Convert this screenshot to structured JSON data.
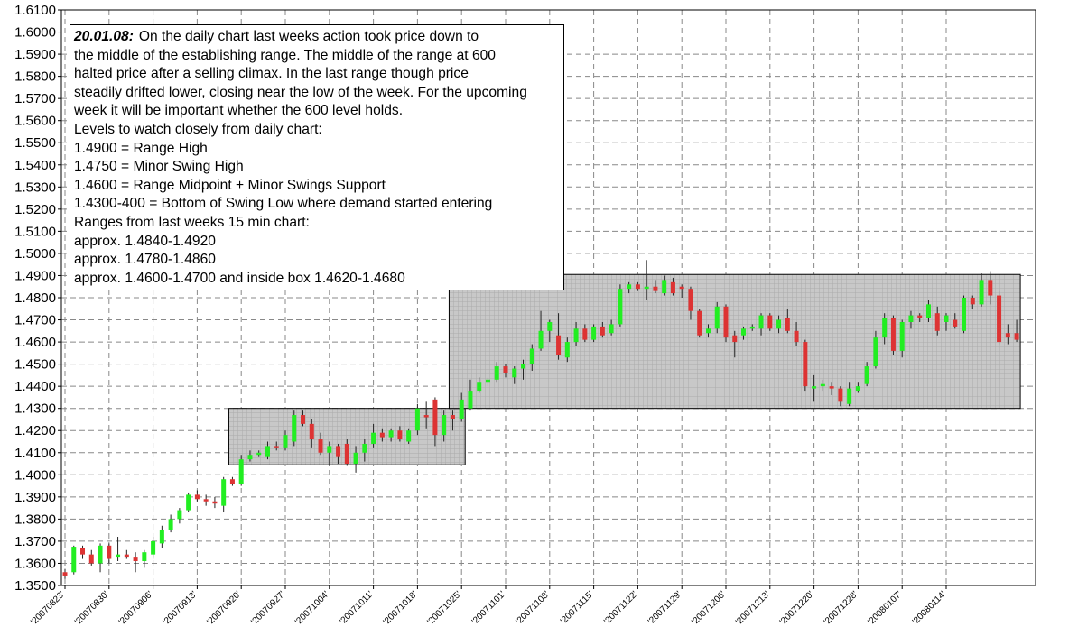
{
  "chart_data": {
    "type": "candlestick",
    "ylim": [
      1.35,
      1.61
    ],
    "y_ticks": [
      "1.3500",
      "1.3600",
      "1.3700",
      "1.3800",
      "1.3900",
      "1.4000",
      "1.4100",
      "1.4200",
      "1.4300",
      "1.4400",
      "1.4500",
      "1.4600",
      "1.4700",
      "1.4800",
      "1.4900",
      "1.5000",
      "1.5100",
      "1.5200",
      "1.5300",
      "1.5400",
      "1.5500",
      "1.5600",
      "1.5700",
      "1.5800",
      "1.5900",
      "1.6000",
      "1.6100"
    ],
    "x_ticks": [
      "'20070823'",
      "'20070830'",
      "'20070906'",
      "'20070913'",
      "'20070920'",
      "'20070927'",
      "'20071004'",
      "'20071011'",
      "'20071018'",
      "'20071025'",
      "'20071101'",
      "'20071108'",
      "'20071115'",
      "'20071122'",
      "'20071129'",
      "'20071206'",
      "'20071213'",
      "'20071220'",
      "'20071228'",
      "'20080107'",
      "'20080114'"
    ],
    "grid": true,
    "bull_color": "#22ee22",
    "bear_color": "#dd3333",
    "range_box_color": "#c8c8c8",
    "candles": [
      [
        1.356,
        1.3575,
        1.353,
        1.3545
      ],
      [
        1.356,
        1.368,
        1.355,
        1.3675
      ],
      [
        1.367,
        1.368,
        1.362,
        1.364
      ],
      [
        1.364,
        1.366,
        1.359,
        1.36
      ],
      [
        1.36,
        1.369,
        1.356,
        1.368
      ],
      [
        1.368,
        1.369,
        1.36,
        1.362
      ],
      [
        1.363,
        1.372,
        1.361,
        1.364
      ],
      [
        1.364,
        1.366,
        1.362,
        1.363
      ],
      [
        1.363,
        1.365,
        1.356,
        1.361
      ],
      [
        1.361,
        1.366,
        1.358,
        1.365
      ],
      [
        1.364,
        1.372,
        1.362,
        1.37
      ],
      [
        1.369,
        1.377,
        1.367,
        1.375
      ],
      [
        1.375,
        1.382,
        1.374,
        1.38
      ],
      [
        1.38,
        1.385,
        1.378,
        1.384
      ],
      [
        1.384,
        1.392,
        1.383,
        1.391
      ],
      [
        1.391,
        1.393,
        1.388,
        1.389
      ],
      [
        1.389,
        1.391,
        1.386,
        1.388
      ],
      [
        1.388,
        1.39,
        1.385,
        1.387
      ],
      [
        1.386,
        1.399,
        1.383,
        1.398
      ],
      [
        1.398,
        1.399,
        1.395,
        1.396
      ],
      [
        1.396,
        1.409,
        1.395,
        1.407
      ],
      [
        1.407,
        1.411,
        1.406,
        1.409
      ],
      [
        1.409,
        1.411,
        1.408,
        1.41
      ],
      [
        1.408,
        1.415,
        1.407,
        1.413
      ],
      [
        1.413,
        1.415,
        1.411,
        1.412
      ],
      [
        1.412,
        1.42,
        1.411,
        1.418
      ],
      [
        1.415,
        1.429,
        1.413,
        1.427
      ],
      [
        1.427,
        1.429,
        1.422,
        1.423
      ],
      [
        1.423,
        1.425,
        1.412,
        1.416
      ],
      [
        1.416,
        1.419,
        1.409,
        1.41
      ],
      [
        1.41,
        1.415,
        1.404,
        1.413
      ],
      [
        1.413,
        1.414,
        1.405,
        1.408
      ],
      [
        1.414,
        1.416,
        1.404,
        1.405
      ],
      [
        1.405,
        1.413,
        1.401,
        1.41
      ],
      [
        1.41,
        1.416,
        1.406,
        1.414
      ],
      [
        1.414,
        1.423,
        1.412,
        1.419
      ],
      [
        1.419,
        1.421,
        1.415,
        1.417
      ],
      [
        1.417,
        1.421,
        1.415,
        1.42
      ],
      [
        1.42,
        1.422,
        1.415,
        1.416
      ],
      [
        1.415,
        1.421,
        1.414,
        1.42
      ],
      [
        1.42,
        1.432,
        1.418,
        1.43
      ],
      [
        1.427,
        1.433,
        1.421,
        1.426
      ],
      [
        1.434,
        1.435,
        1.413,
        1.418
      ],
      [
        1.418,
        1.429,
        1.415,
        1.427
      ],
      [
        1.427,
        1.429,
        1.42,
        1.425
      ],
      [
        1.425,
        1.437,
        1.424,
        1.434
      ],
      [
        1.43,
        1.443,
        1.429,
        1.438
      ],
      [
        1.438,
        1.444,
        1.437,
        1.442
      ],
      [
        1.442,
        1.444,
        1.44,
        1.443
      ],
      [
        1.443,
        1.451,
        1.442,
        1.449
      ],
      [
        1.449,
        1.45,
        1.444,
        1.446
      ],
      [
        1.444,
        1.449,
        1.441,
        1.448
      ],
      [
        1.448,
        1.452,
        1.443,
        1.45
      ],
      [
        1.45,
        1.459,
        1.447,
        1.457
      ],
      [
        1.457,
        1.474,
        1.456,
        1.465
      ],
      [
        1.465,
        1.47,
        1.46,
        1.469
      ],
      [
        1.463,
        1.473,
        1.452,
        1.454
      ],
      [
        1.453,
        1.462,
        1.451,
        1.46
      ],
      [
        1.46,
        1.469,
        1.458,
        1.466
      ],
      [
        1.466,
        1.468,
        1.46,
        1.461
      ],
      [
        1.461,
        1.468,
        1.46,
        1.467
      ],
      [
        1.467,
        1.469,
        1.462,
        1.463
      ],
      [
        1.464,
        1.47,
        1.463,
        1.468
      ],
      [
        1.468,
        1.486,
        1.467,
        1.484
      ],
      [
        1.484,
        1.487,
        1.482,
        1.486
      ],
      [
        1.486,
        1.487,
        1.483,
        1.484
      ],
      [
        1.484,
        1.497,
        1.479,
        1.485
      ],
      [
        1.485,
        1.488,
        1.482,
        1.483
      ],
      [
        1.482,
        1.49,
        1.481,
        1.488
      ],
      [
        1.487,
        1.489,
        1.481,
        1.482
      ],
      [
        1.485,
        1.486,
        1.48,
        1.484
      ],
      [
        1.484,
        1.485,
        1.47,
        1.474
      ],
      [
        1.474,
        1.475,
        1.462,
        1.463
      ],
      [
        1.464,
        1.468,
        1.462,
        1.466
      ],
      [
        1.466,
        1.478,
        1.464,
        1.476
      ],
      [
        1.476,
        1.477,
        1.46,
        1.462
      ],
      [
        1.463,
        1.465,
        1.453,
        1.46
      ],
      [
        1.463,
        1.467,
        1.461,
        1.466
      ],
      [
        1.466,
        1.468,
        1.465,
        1.467
      ],
      [
        1.466,
        1.473,
        1.463,
        1.472
      ],
      [
        1.472,
        1.473,
        1.465,
        1.466
      ],
      [
        1.466,
        1.472,
        1.464,
        1.47
      ],
      [
        1.471,
        1.475,
        1.464,
        1.465
      ],
      [
        1.465,
        1.469,
        1.458,
        1.46
      ],
      [
        1.46,
        1.461,
        1.438,
        1.44
      ],
      [
        1.439,
        1.445,
        1.433,
        1.44
      ],
      [
        1.44,
        1.443,
        1.438,
        1.441
      ],
      [
        1.44,
        1.442,
        1.436,
        1.439
      ],
      [
        1.439,
        1.44,
        1.431,
        1.433
      ],
      [
        1.432,
        1.442,
        1.431,
        1.439
      ],
      [
        1.438,
        1.442,
        1.437,
        1.44
      ],
      [
        1.441,
        1.451,
        1.44,
        1.449
      ],
      [
        1.449,
        1.465,
        1.448,
        1.462
      ],
      [
        1.462,
        1.473,
        1.459,
        1.471
      ],
      [
        1.471,
        1.472,
        1.454,
        1.456
      ],
      [
        1.456,
        1.47,
        1.453,
        1.469
      ],
      [
        1.469,
        1.474,
        1.466,
        1.472
      ],
      [
        1.472,
        1.473,
        1.469,
        1.471
      ],
      [
        1.471,
        1.479,
        1.469,
        1.477
      ],
      [
        1.473,
        1.476,
        1.463,
        1.465
      ],
      [
        1.469,
        1.473,
        1.465,
        1.472
      ],
      [
        1.47,
        1.473,
        1.466,
        1.467
      ],
      [
        1.465,
        1.481,
        1.464,
        1.48
      ],
      [
        1.48,
        1.481,
        1.475,
        1.477
      ],
      [
        1.477,
        1.491,
        1.476,
        1.488
      ],
      [
        1.488,
        1.492,
        1.477,
        1.481
      ],
      [
        1.481,
        1.483,
        1.459,
        1.46
      ],
      [
        1.464,
        1.468,
        1.459,
        1.462
      ],
      [
        1.464,
        1.47,
        1.46,
        1.461
      ]
    ],
    "boxes": [
      {
        "start_index": 19,
        "end_index": 45,
        "low": 1.4045,
        "high": 1.43
      },
      {
        "start_index": 44,
        "end_index": 108,
        "low": 1.43,
        "high": 1.4905
      }
    ]
  },
  "annotation": {
    "date": "20.01.08:",
    "lines": [
      "On the daily chart last weeks action took price down to",
      "the middle of the establishing range. The middle of the range at 600",
      "halted price after a selling climax. In the last range though price",
      "steadily drifted lower, closing near the low of the week. For the upcoming",
      "week it will be important whether the 600 level holds.",
      "Levels to watch closely from daily chart:",
      "1.4900 = Range High",
      "1.4750 = Minor Swing High",
      "1.4600 = Range Midpoint + Minor Swings Support",
      "1.4300-400 = Bottom of Swing Low where demand started entering",
      "Ranges from last weeks 15 min chart:",
      "approx. 1.4840-1.4920",
      "approx. 1.4780-1.4860",
      "approx. 1.4600-1.4700 and inside box 1.4620-1.4680"
    ]
  }
}
